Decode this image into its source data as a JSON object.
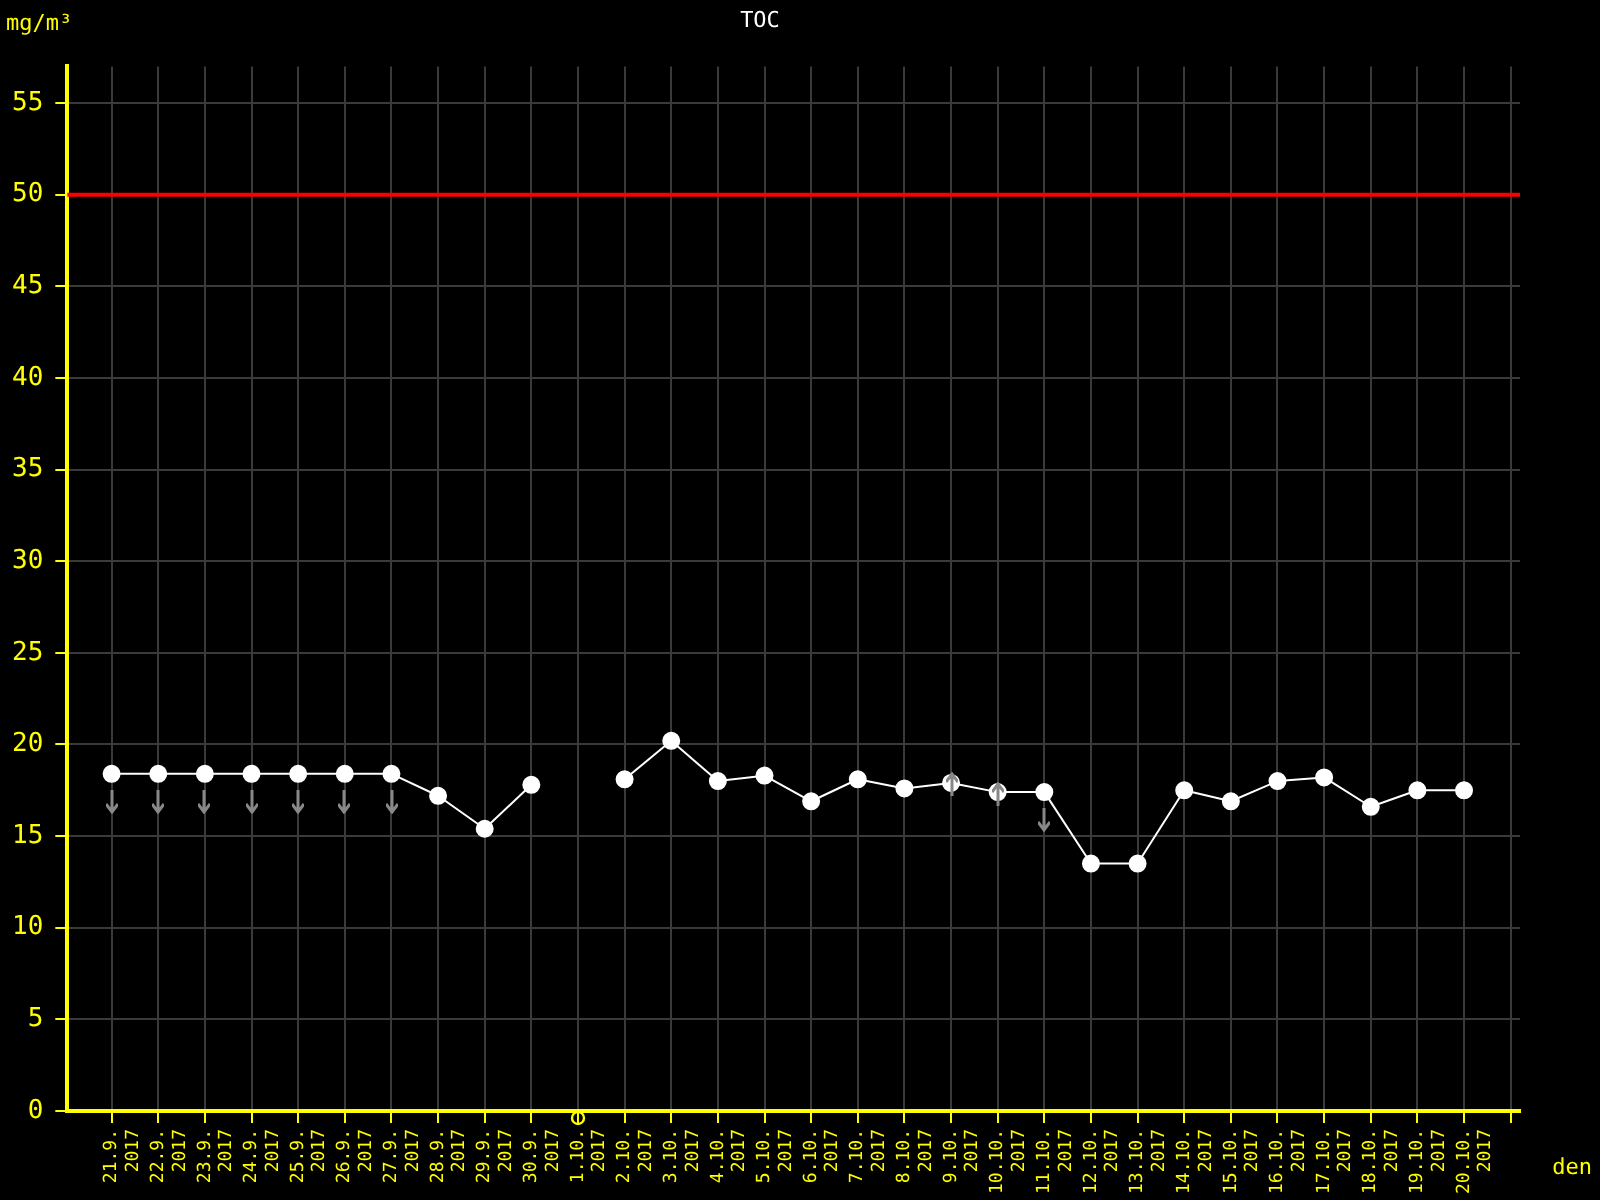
{
  "chart_data": {
    "type": "line",
    "title": "TOC",
    "ylabel": "mg/m³",
    "xlabel": "den",
    "categories": [
      "21.9. 2017",
      "22.9. 2017",
      "23.9. 2017",
      "24.9. 2017",
      "25.9. 2017",
      "26.9. 2017",
      "27.9. 2017",
      "28.9. 2017",
      "29.9. 2017",
      "30.9. 2017",
      "1.10. 2017",
      "2.10. 2017",
      "3.10. 2017",
      "4.10. 2017",
      "5.10. 2017",
      "6.10. 2017",
      "7.10. 2017",
      "8.10. 2017",
      "9.10. 2017",
      "10.10. 2017",
      "11.10. 2017",
      "12.10. 2017",
      "13.10. 2017",
      "14.10. 2017",
      "15.10. 2017",
      "16.10. 2017",
      "17.10. 2017",
      "18.10. 2017",
      "19.10. 2017",
      "20.10. 2017"
    ],
    "series": [
      {
        "color": "#ffffff",
        "values": [
          18.4,
          18.4,
          18.4,
          18.4,
          18.4,
          18.4,
          18.4,
          17.2,
          15.4,
          17.8,
          null,
          18.1,
          20.2,
          18.0,
          18.3,
          16.9,
          18.1,
          17.6,
          17.9,
          17.4,
          17.4,
          13.5,
          13.5,
          17.5,
          16.9,
          18.0,
          18.2,
          16.6,
          17.5,
          17.5
        ]
      }
    ],
    "ylim": [
      0,
      57
    ],
    "yticks": [
      0,
      5,
      10,
      15,
      20,
      25,
      30,
      35,
      40,
      45,
      50,
      55
    ],
    "ref_lines": [
      {
        "axis": "y",
        "value": 50,
        "color": "#ff0000"
      }
    ],
    "grid": true,
    "legend": false,
    "marker": "circle",
    "line_style": "solid"
  }
}
